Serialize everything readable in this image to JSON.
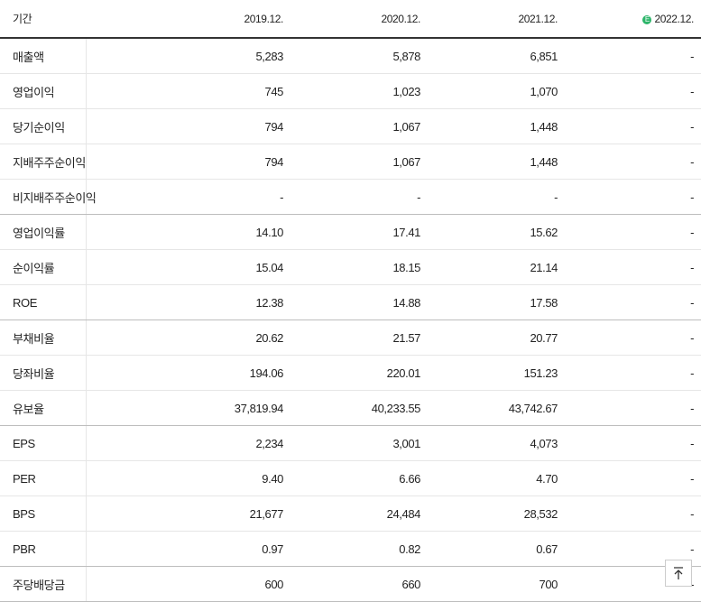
{
  "table": {
    "header": {
      "label": "기간",
      "columns": [
        "2019.12.",
        "2020.12.",
        "2021.12.",
        "2022.12."
      ],
      "estimate_mark": "E"
    },
    "groups": [
      [
        {
          "label": "매출액",
          "values": [
            "5,283",
            "5,878",
            "6,851",
            "-"
          ]
        },
        {
          "label": "영업이익",
          "values": [
            "745",
            "1,023",
            "1,070",
            "-"
          ]
        },
        {
          "label": "당기순이익",
          "values": [
            "794",
            "1,067",
            "1,448",
            "-"
          ]
        },
        {
          "label": "지배주주순이익",
          "values": [
            "794",
            "1,067",
            "1,448",
            "-"
          ]
        },
        {
          "label": "비지배주주순이익",
          "values": [
            "-",
            "-",
            "-",
            "-"
          ]
        }
      ],
      [
        {
          "label": "영업이익률",
          "values": [
            "14.10",
            "17.41",
            "15.62",
            "-"
          ]
        },
        {
          "label": "순이익률",
          "values": [
            "15.04",
            "18.15",
            "21.14",
            "-"
          ]
        },
        {
          "label": "ROE",
          "values": [
            "12.38",
            "14.88",
            "17.58",
            "-"
          ]
        }
      ],
      [
        {
          "label": "부채비율",
          "values": [
            "20.62",
            "21.57",
            "20.77",
            "-"
          ]
        },
        {
          "label": "당좌비율",
          "values": [
            "194.06",
            "220.01",
            "151.23",
            "-"
          ]
        },
        {
          "label": "유보율",
          "values": [
            "37,819.94",
            "40,233.55",
            "43,742.67",
            "-"
          ]
        }
      ],
      [
        {
          "label": "EPS",
          "values": [
            "2,234",
            "3,001",
            "4,073",
            "-"
          ]
        },
        {
          "label": "PER",
          "values": [
            "9.40",
            "6.66",
            "4.70",
            "-"
          ]
        },
        {
          "label": "BPS",
          "values": [
            "21,677",
            "24,484",
            "28,532",
            "-"
          ]
        },
        {
          "label": "PBR",
          "values": [
            "0.97",
            "0.82",
            "0.67",
            "-"
          ]
        }
      ],
      [
        {
          "label": "주당배당금",
          "values": [
            "600",
            "660",
            "700",
            "-"
          ]
        }
      ]
    ]
  }
}
